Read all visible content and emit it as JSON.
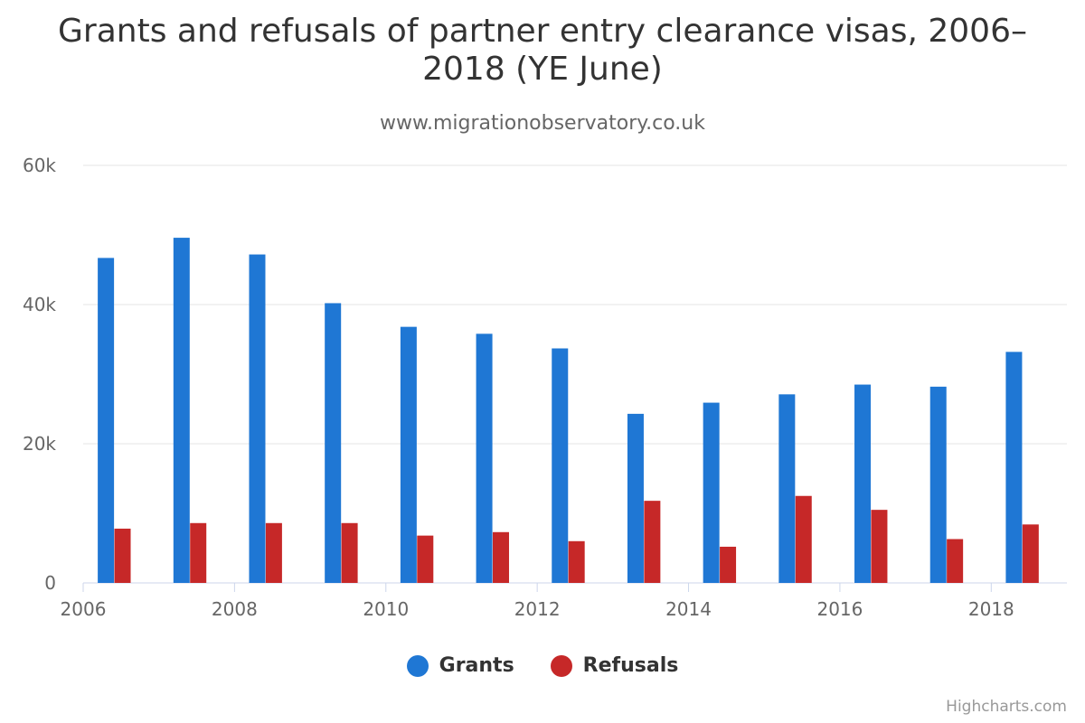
{
  "chart_data": {
    "type": "bar",
    "title_lines": [
      "Grants and refusals of partner entry clearance visas, 2006–",
      "2018 (YE June)"
    ],
    "subtitle": "www.migrationobservatory.co.uk",
    "credits": "Highcharts.com",
    "x": [
      2006,
      2007,
      2008,
      2009,
      2010,
      2011,
      2012,
      2013,
      2014,
      2015,
      2016,
      2017,
      2018
    ],
    "x_tick_labels": [
      "2006",
      "2008",
      "2010",
      "2012",
      "2014",
      "2016",
      "2018"
    ],
    "y_tick_labels": [
      "0",
      "20k",
      "40k",
      "60k"
    ],
    "ylim": [
      0,
      60000
    ],
    "y_ticks": [
      0,
      20000,
      40000,
      60000
    ],
    "grid": true,
    "legend_position": "bottom-center",
    "series": [
      {
        "name": "Grants",
        "color": "#1f77d4",
        "values": [
          46700,
          49600,
          47200,
          40200,
          36800,
          35800,
          33700,
          24300,
          25900,
          27100,
          28500,
          28200,
          33200
        ]
      },
      {
        "name": "Refusals",
        "color": "#c62828",
        "values": [
          7800,
          8600,
          8600,
          8600,
          6800,
          7300,
          6000,
          11800,
          5200,
          12500,
          10500,
          6300,
          8400
        ]
      }
    ]
  }
}
